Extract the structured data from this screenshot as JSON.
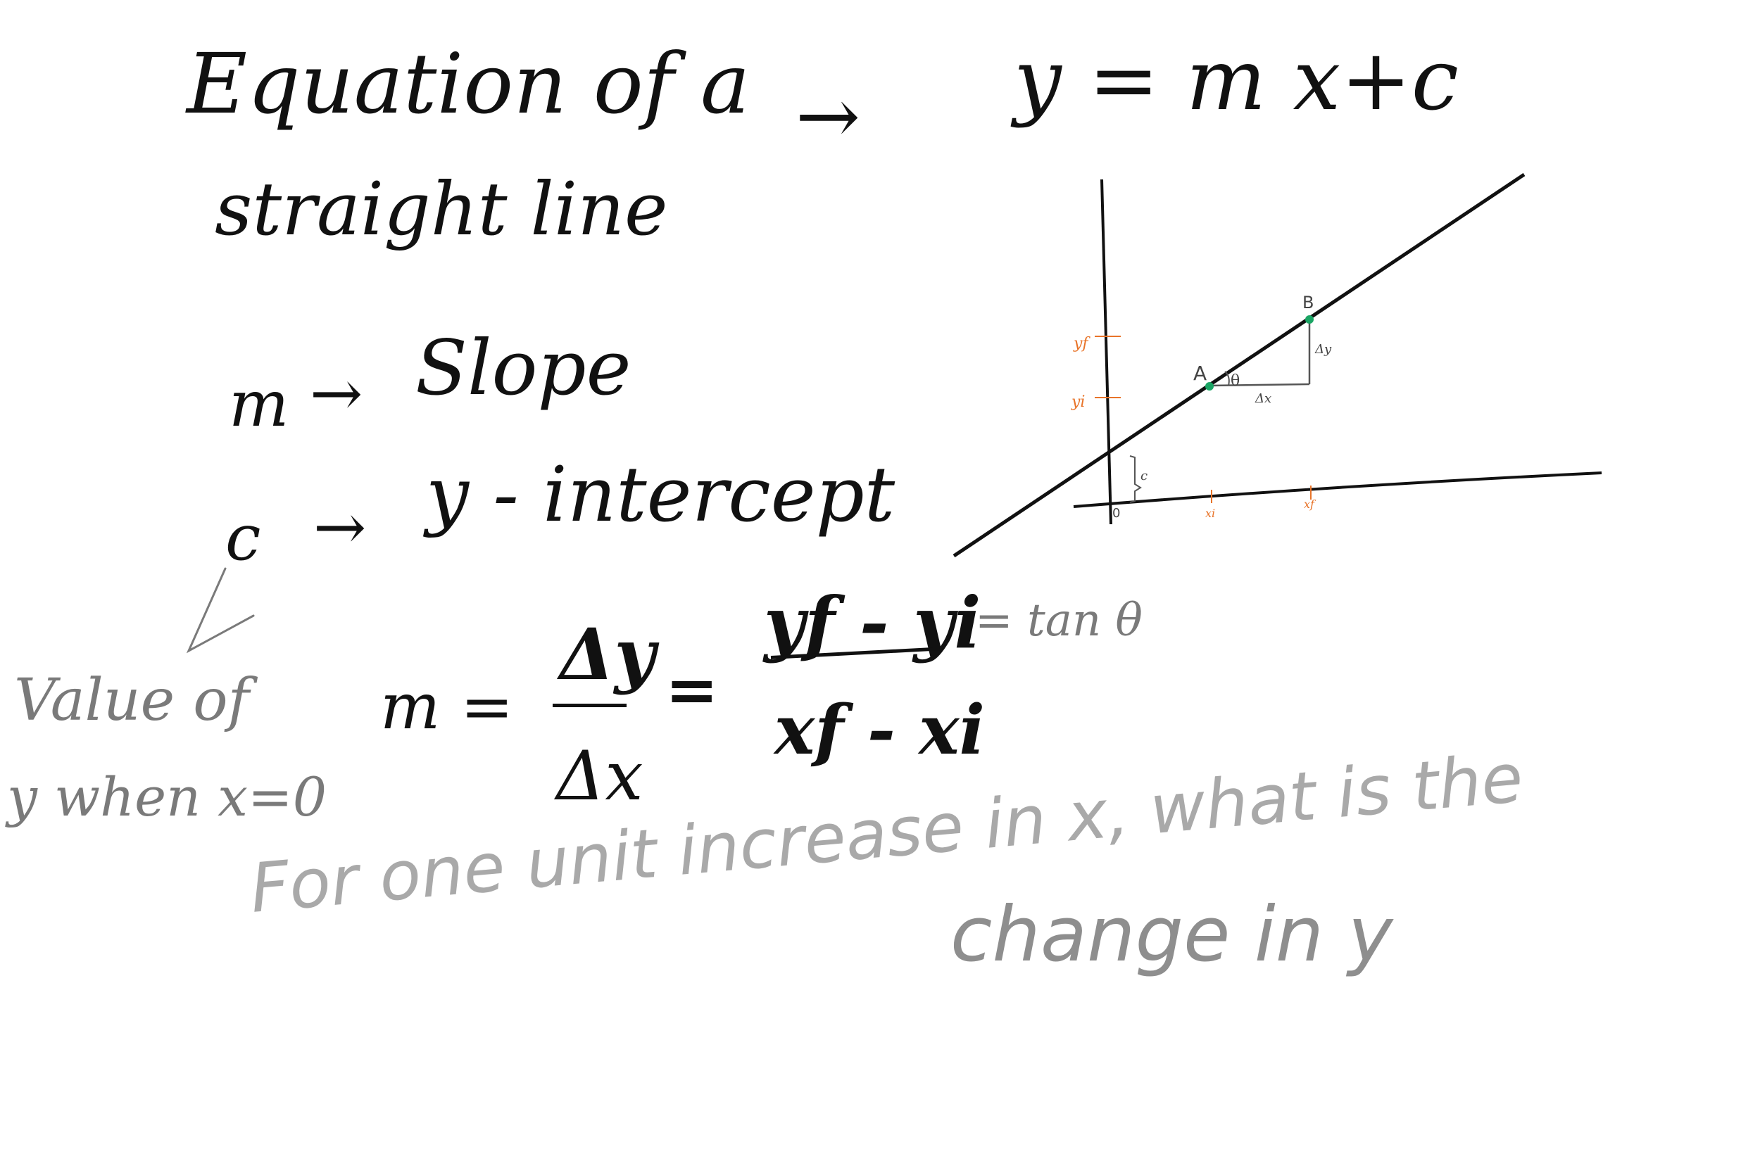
{
  "title": {
    "line1": "Equation of a",
    "line2": "straight line"
  },
  "equation": {
    "arrow": "→",
    "formula": "y = m x+c"
  },
  "definitions": {
    "slope": {
      "symbol": "m",
      "arrow": "→",
      "label": "Slope"
    },
    "intercept": {
      "symbol": "c",
      "arrow": "→",
      "label": "y - intercept"
    },
    "note_line1": "Value of",
    "note_line2": "y when x=0"
  },
  "slope_formula": {
    "lhs": "m =",
    "num1": "Δy",
    "den1": "Δx",
    "eq": "=",
    "num2": "yf - yi",
    "den2": "xf - xi",
    "tan": "= tan θ"
  },
  "question": {
    "line1": "For one unit increase in x, what is the",
    "line2": "change in y"
  },
  "graph": {
    "point_a": "A",
    "point_b": "B",
    "angle": "θ",
    "delta_x": "Δx",
    "delta_y": "Δy",
    "intercept_label": "c",
    "origin": "0",
    "yf": "yf",
    "yi": "yi",
    "xi": "xi",
    "xf": "xf",
    "colors": {
      "ink": "#111111",
      "axis_marks": "#e8742a",
      "points": "#1aa564"
    }
  }
}
